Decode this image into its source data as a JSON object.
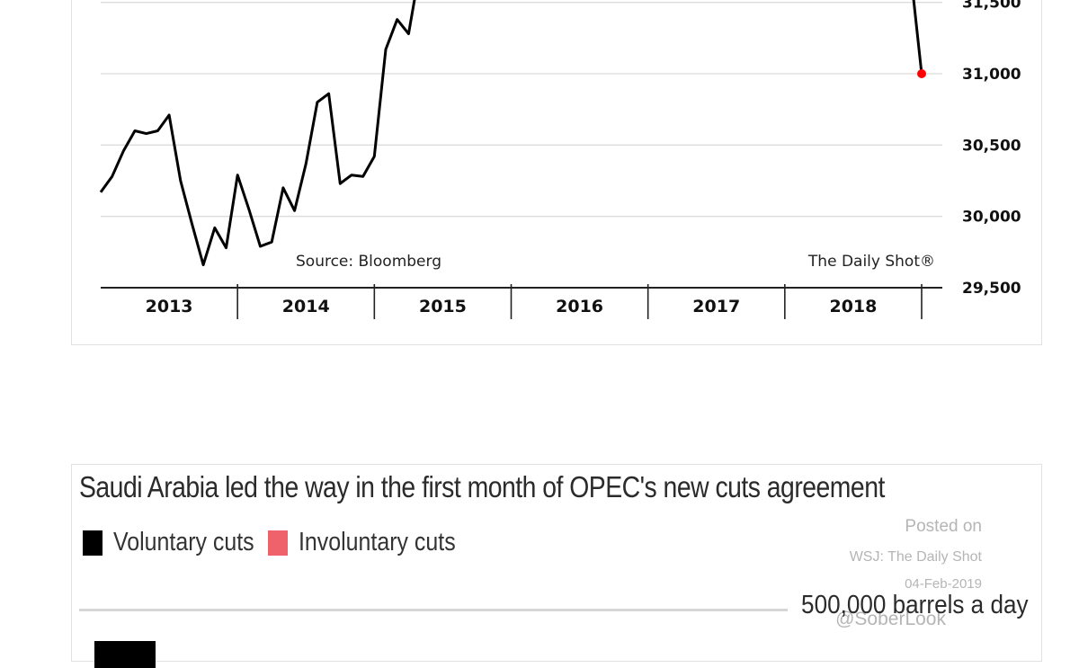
{
  "chart_data": [
    {
      "type": "line",
      "title": "",
      "xlabel": "",
      "ylabel": "",
      "x_tick_labels": [
        "2013",
        "2014",
        "2015",
        "2016",
        "2017",
        "2018"
      ],
      "y_tick_labels": [
        "31,500",
        "31,000",
        "30,500",
        "30,000",
        "29,500"
      ],
      "y_ticks": [
        31500,
        31000,
        30500,
        30000,
        29500
      ],
      "ylim": [
        29500,
        31750
      ],
      "xlim": [
        "2013-01",
        "2019-01"
      ],
      "grid": true,
      "y_axis_side": "right",
      "series": [
        {
          "color": "#000000",
          "points": [
            [
              "2013-01",
              30170
            ],
            [
              "2013-02",
              30280
            ],
            [
              "2013-03",
              30460
            ],
            [
              "2013-04",
              30600
            ],
            [
              "2013-05",
              30580
            ],
            [
              "2013-06",
              30600
            ],
            [
              "2013-07",
              30710
            ],
            [
              "2013-08",
              30250
            ],
            [
              "2013-09",
              29950
            ],
            [
              "2013-10",
              29660
            ],
            [
              "2013-11",
              29920
            ],
            [
              "2013-12",
              29780
            ],
            [
              "2014-01",
              30290
            ],
            [
              "2014-02",
              30050
            ],
            [
              "2014-03",
              29790
            ],
            [
              "2014-04",
              29820
            ],
            [
              "2014-05",
              30200
            ],
            [
              "2014-06",
              30040
            ],
            [
              "2014-07",
              30370
            ],
            [
              "2014-08",
              30800
            ],
            [
              "2014-09",
              30860
            ],
            [
              "2014-10",
              30230
            ],
            [
              "2014-11",
              30290
            ],
            [
              "2014-12",
              30280
            ],
            [
              "2015-01",
              30420
            ],
            [
              "2015-02",
              31170
            ],
            [
              "2015-03",
              31380
            ],
            [
              "2015-04",
              31280
            ],
            [
              "2015-05",
              31740
            ]
          ]
        },
        {
          "color": "#000000",
          "points": [
            [
              "2018-12",
              31740
            ],
            [
              "2019-01",
              31000
            ]
          ]
        }
      ],
      "highlight_point": {
        "x": "2019-01",
        "y": 31000,
        "color": "#ff0000"
      },
      "annotations": [
        "Source: Bloomberg",
        "The Daily Shot®"
      ]
    },
    {
      "type": "bar",
      "title": "Saudi Arabia led the way in the first month of OPEC's new cuts agreement",
      "series": [
        {
          "name": "Voluntary cuts",
          "color": "#000000"
        },
        {
          "name": "Involuntary cuts",
          "color": "#f0626b"
        }
      ],
      "reference_label": "500,000 barrels a day"
    }
  ],
  "watermark": {
    "line1": "Posted on",
    "line2": "WSJ: The Daily Shot",
    "line3": "04-Feb-2019",
    "line4": "@SoberLook"
  }
}
